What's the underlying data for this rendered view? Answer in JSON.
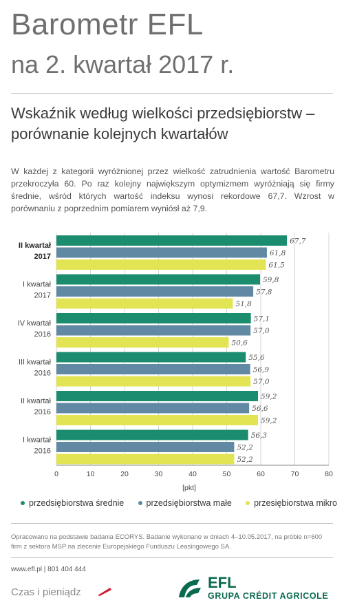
{
  "header": {
    "title": "Barometr EFL",
    "subtitle": "na 2. kwartał 2017 r."
  },
  "section": {
    "title": "Wskaźnik według wielkości przedsiębiorstw – porównanie kolejnych kwartałów",
    "intro": "W każdej z kategorii wyróżnionej przez wielkość zatrudnienia wartość Barometru przekroczyła 60. Po raz kolejny największym optymizmem wyróżniają się firmy średnie, wśród których wartość indeksu wynosi rekordowe 67,7. Wzrost w porównaniu z poprzednim pomiarem wyniósł aż 7,9."
  },
  "colors": {
    "medium": "#1b8c6e",
    "small": "#6189a4",
    "micro": "#e3e454",
    "title_gray": "#6f6f6f"
  },
  "chart_data": {
    "type": "bar",
    "orientation": "horizontal",
    "categories": [
      [
        "II kwartał",
        "2017"
      ],
      [
        "I kwartał",
        "2017"
      ],
      [
        "IV kwartał",
        "2016"
      ],
      [
        "III kwartał",
        "2016"
      ],
      [
        "II kwartał",
        "2016"
      ],
      [
        "I kwartał",
        "2016"
      ]
    ],
    "highlight_category": 0,
    "series": [
      {
        "name": "przedsiębiorstwa średnie",
        "values": [
          67.7,
          59.8,
          57.1,
          55.6,
          59.2,
          56.3
        ],
        "labels": [
          "67,7",
          "59,8",
          "57,1",
          "55,6",
          "59,2",
          "56,3"
        ]
      },
      {
        "name": "przedsiębiorstwa małe",
        "values": [
          61.8,
          57.8,
          57.0,
          56.9,
          56.6,
          52.2
        ],
        "labels": [
          "61,8",
          "57,8",
          "57,0",
          "56,9",
          "56,6",
          "52,2"
        ]
      },
      {
        "name": "przesiębiorstwa mikro",
        "values": [
          61.5,
          51.8,
          50.6,
          57.0,
          59.2,
          52.2
        ],
        "labels": [
          "61,5",
          "51,8",
          "50,6",
          "57,0",
          "59,2",
          "52,2"
        ]
      }
    ],
    "xlim": [
      0,
      80
    ],
    "xticks": [
      "0",
      "10",
      "20",
      "30",
      "40",
      "50",
      "60",
      "70",
      "80"
    ],
    "xlabel": "[pkt]",
    "grid": true,
    "legend_position": "bottom"
  },
  "footer": {
    "source": "Opracowano na podstawie badania ECORYS. Badanie wykonano w dniach 4–10.05.2017, na próbie n=600 firm z sektora MSP na zlecenie Europejskiego Funduszu Leasingowego SA.",
    "contact": "www.efl.pl | 801 404 444",
    "slogan": "Czas i pieniądz",
    "brand_name": "EFL",
    "brand_group": "GRUPA CRÉDIT AGRICOLE"
  }
}
